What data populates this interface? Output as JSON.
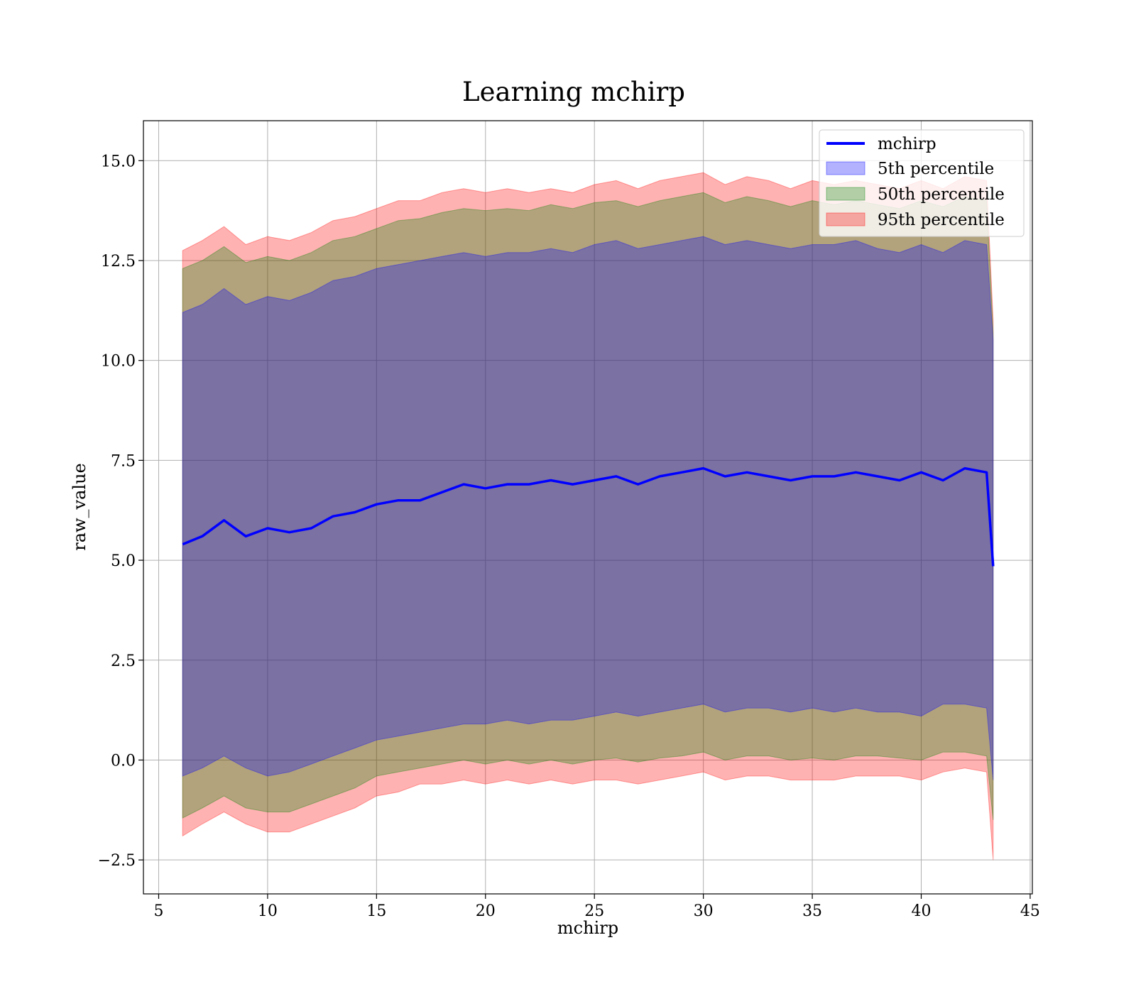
{
  "chart_data": {
    "type": "area",
    "title": "Learning mchirp",
    "xlabel": "mchirp",
    "ylabel": "raw_value",
    "xlim": [
      4.3,
      45.1
    ],
    "ylim": [
      -3.35,
      16.0
    ],
    "xticks": [
      5,
      10,
      15,
      20,
      25,
      30,
      35,
      40,
      45
    ],
    "xtick_labels": [
      "5",
      "10",
      "15",
      "20",
      "25",
      "30",
      "35",
      "40",
      "45"
    ],
    "yticks": [
      -2.5,
      0.0,
      2.5,
      5.0,
      7.5,
      10.0,
      12.5,
      15.0
    ],
    "ytick_labels": [
      "−2.5",
      "0.0",
      "2.5",
      "5.0",
      "7.5",
      "10.0",
      "12.5",
      "15.0"
    ],
    "grid": true,
    "legend_position": "top-right",
    "legend": [
      {
        "label": "mchirp",
        "kind": "line",
        "color": "#0000ff"
      },
      {
        "label": "5th percentile",
        "kind": "patch",
        "color": "#0000ff",
        "alpha": 0.3
      },
      {
        "label": "50th percentile",
        "kind": "patch",
        "color": "#008000",
        "alpha": 0.3
      },
      {
        "label": "95th percentile",
        "kind": "patch",
        "color": "#ff0000",
        "alpha": 0.3
      }
    ],
    "x": [
      6.1,
      7.0,
      8.0,
      9.0,
      10.0,
      11.0,
      12.0,
      13.0,
      14.0,
      15.0,
      16.0,
      17.0,
      18.0,
      19.0,
      20.0,
      21.0,
      22.0,
      23.0,
      24.0,
      25.0,
      26.0,
      27.0,
      28.0,
      29.0,
      30.0,
      31.0,
      32.0,
      33.0,
      34.0,
      35.0,
      36.0,
      37.0,
      38.0,
      39.0,
      40.0,
      41.0,
      42.0,
      43.0,
      43.3
    ],
    "series": [
      {
        "name": "mchirp",
        "kind": "line",
        "color": "#0000ff",
        "values": [
          5.4,
          5.6,
          6.0,
          5.6,
          5.8,
          5.7,
          5.8,
          6.1,
          6.2,
          6.4,
          6.5,
          6.5,
          6.7,
          6.9,
          6.8,
          6.9,
          6.9,
          7.0,
          6.9,
          7.0,
          7.1,
          6.9,
          7.1,
          7.2,
          7.3,
          7.1,
          7.2,
          7.1,
          7.0,
          7.1,
          7.1,
          7.2,
          7.1,
          7.0,
          7.2,
          7.0,
          7.3,
          7.2,
          4.85
        ]
      },
      {
        "name": "95th percentile",
        "kind": "band",
        "color": "#ff0000",
        "alpha": 0.3,
        "lower": [
          -1.9,
          -1.6,
          -1.3,
          -1.6,
          -1.8,
          -1.8,
          -1.6,
          -1.4,
          -1.2,
          -0.9,
          -0.8,
          -0.6,
          -0.6,
          -0.5,
          -0.6,
          -0.5,
          -0.6,
          -0.5,
          -0.6,
          -0.5,
          -0.5,
          -0.6,
          -0.5,
          -0.4,
          -0.3,
          -0.5,
          -0.4,
          -0.4,
          -0.5,
          -0.5,
          -0.5,
          -0.4,
          -0.4,
          -0.4,
          -0.5,
          -0.3,
          -0.2,
          -0.3,
          -2.5
        ],
        "upper": [
          12.75,
          13.0,
          13.35,
          12.9,
          13.1,
          13.0,
          13.2,
          13.5,
          13.6,
          13.8,
          14.0,
          14.0,
          14.2,
          14.3,
          14.2,
          14.3,
          14.2,
          14.3,
          14.2,
          14.4,
          14.5,
          14.3,
          14.5,
          14.6,
          14.7,
          14.4,
          14.6,
          14.5,
          14.3,
          14.5,
          14.4,
          14.5,
          14.4,
          14.3,
          14.5,
          14.3,
          14.6,
          14.5,
          11.0
        ]
      },
      {
        "name": "50th percentile",
        "kind": "band",
        "color": "#008000",
        "alpha": 0.3,
        "lower": [
          -1.45,
          -1.2,
          -0.9,
          -1.2,
          -1.3,
          -1.3,
          -1.1,
          -0.9,
          -0.7,
          -0.4,
          -0.3,
          -0.2,
          -0.1,
          0.0,
          -0.1,
          0.0,
          -0.1,
          0.0,
          -0.1,
          0.0,
          0.05,
          -0.05,
          0.05,
          0.1,
          0.2,
          0.0,
          0.1,
          0.1,
          0.0,
          0.05,
          0.0,
          0.1,
          0.1,
          0.05,
          0.0,
          0.2,
          0.2,
          0.1,
          -1.5
        ],
        "upper": [
          12.3,
          12.5,
          12.85,
          12.45,
          12.6,
          12.5,
          12.7,
          13.0,
          13.1,
          13.3,
          13.5,
          13.55,
          13.7,
          13.8,
          13.75,
          13.8,
          13.75,
          13.9,
          13.8,
          13.95,
          14.0,
          13.85,
          14.0,
          14.1,
          14.2,
          13.95,
          14.1,
          14.0,
          13.85,
          14.0,
          13.9,
          14.0,
          13.9,
          13.8,
          14.0,
          13.85,
          14.1,
          14.0,
          10.7
        ]
      },
      {
        "name": "5th percentile",
        "kind": "band",
        "color": "#0000ff",
        "alpha": 0.3,
        "lower": [
          -0.4,
          -0.2,
          0.1,
          -0.2,
          -0.4,
          -0.3,
          -0.1,
          0.1,
          0.3,
          0.5,
          0.6,
          0.7,
          0.8,
          0.9,
          0.9,
          1.0,
          0.9,
          1.0,
          1.0,
          1.1,
          1.2,
          1.1,
          1.2,
          1.3,
          1.4,
          1.2,
          1.3,
          1.3,
          1.2,
          1.3,
          1.2,
          1.3,
          1.2,
          1.2,
          1.1,
          1.4,
          1.4,
          1.3,
          -0.5
        ],
        "upper": [
          11.2,
          11.4,
          11.8,
          11.4,
          11.6,
          11.5,
          11.7,
          12.0,
          12.1,
          12.3,
          12.4,
          12.5,
          12.6,
          12.7,
          12.6,
          12.7,
          12.7,
          12.8,
          12.7,
          12.9,
          13.0,
          12.8,
          12.9,
          13.0,
          13.1,
          12.9,
          13.0,
          12.9,
          12.8,
          12.9,
          12.9,
          13.0,
          12.8,
          12.7,
          12.9,
          12.7,
          13.0,
          12.9,
          10.5
        ]
      }
    ]
  }
}
